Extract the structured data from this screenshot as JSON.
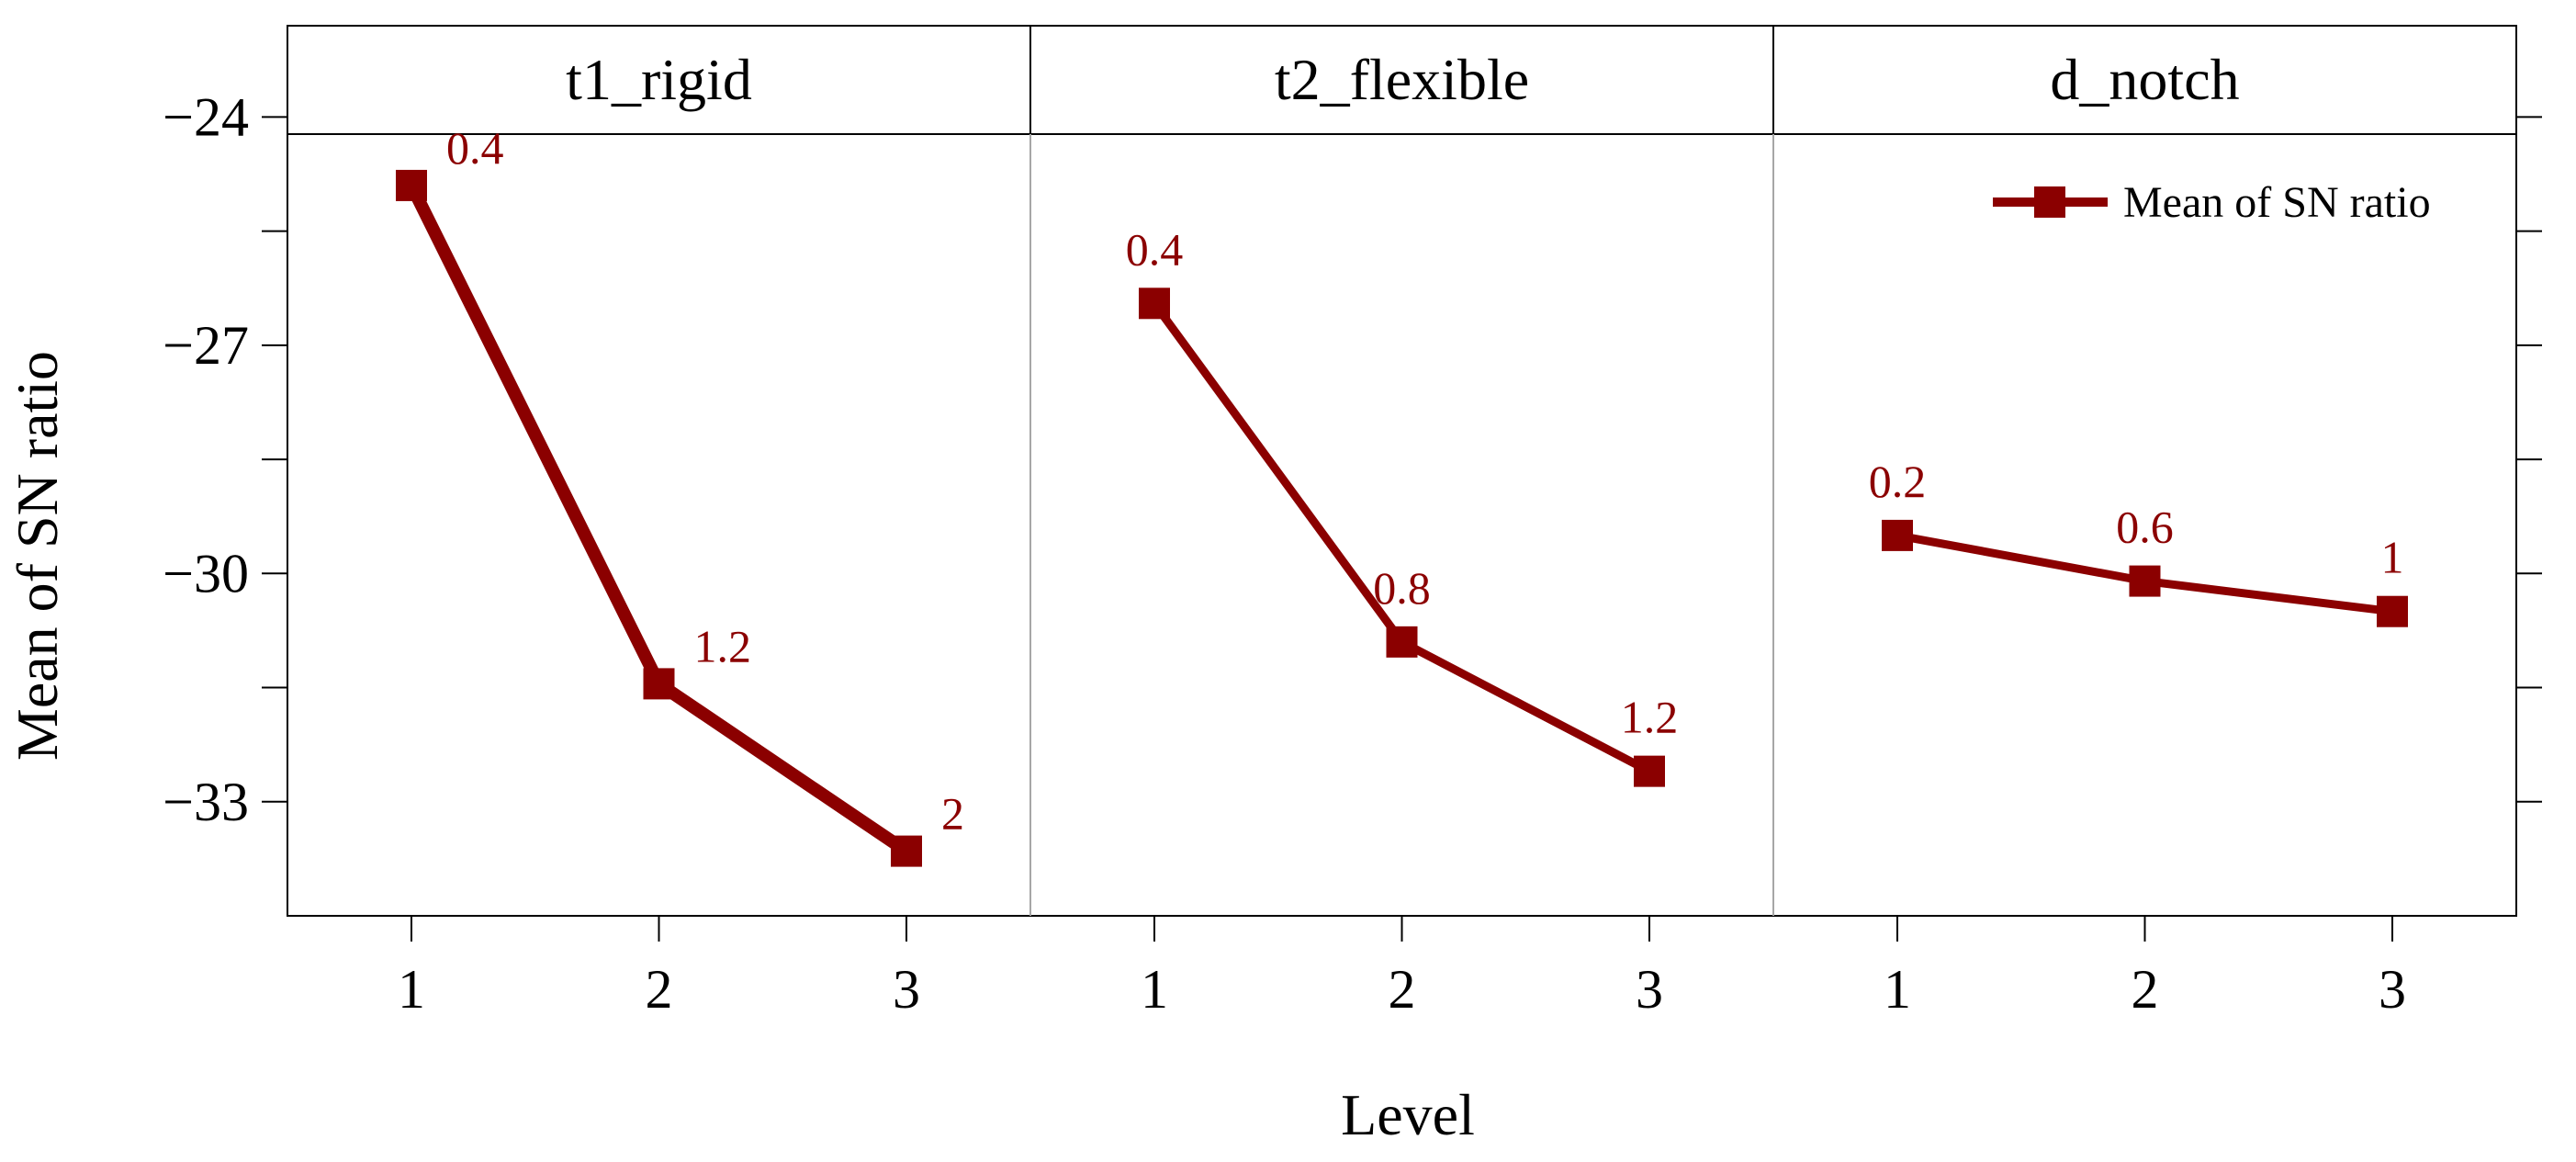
{
  "chart_data": {
    "type": "line",
    "ylabel": "Mean of SN ratio",
    "xlabel": "Level",
    "ylim": [
      -34.5,
      -22.8
    ],
    "yticks": [
      -24,
      -27,
      -30,
      -33
    ],
    "ytick_labels": [
      "−24",
      "−27",
      "−30",
      "−33"
    ],
    "x_ticks": [
      "1",
      "2",
      "3"
    ],
    "legend": {
      "label": "Mean of SN ratio",
      "position": "top-right"
    },
    "series_color": "#8b0000",
    "panels": [
      {
        "name": "t1_rigid",
        "x": [
          1,
          2,
          3
        ],
        "values": [
          -24.9,
          -31.45,
          -33.65
        ],
        "labels": [
          "0.4",
          "1.2",
          "2"
        ]
      },
      {
        "name": "t2_flexible",
        "x": [
          1,
          2,
          3
        ],
        "values": [
          -26.45,
          -30.9,
          -32.6
        ],
        "labels": [
          "0.4",
          "0.8",
          "1.2"
        ]
      },
      {
        "name": "d_notch",
        "x": [
          1,
          2,
          3
        ],
        "values": [
          -29.5,
          -30.1,
          -30.5
        ],
        "labels": [
          "0.2",
          "0.6",
          "1"
        ]
      }
    ]
  }
}
